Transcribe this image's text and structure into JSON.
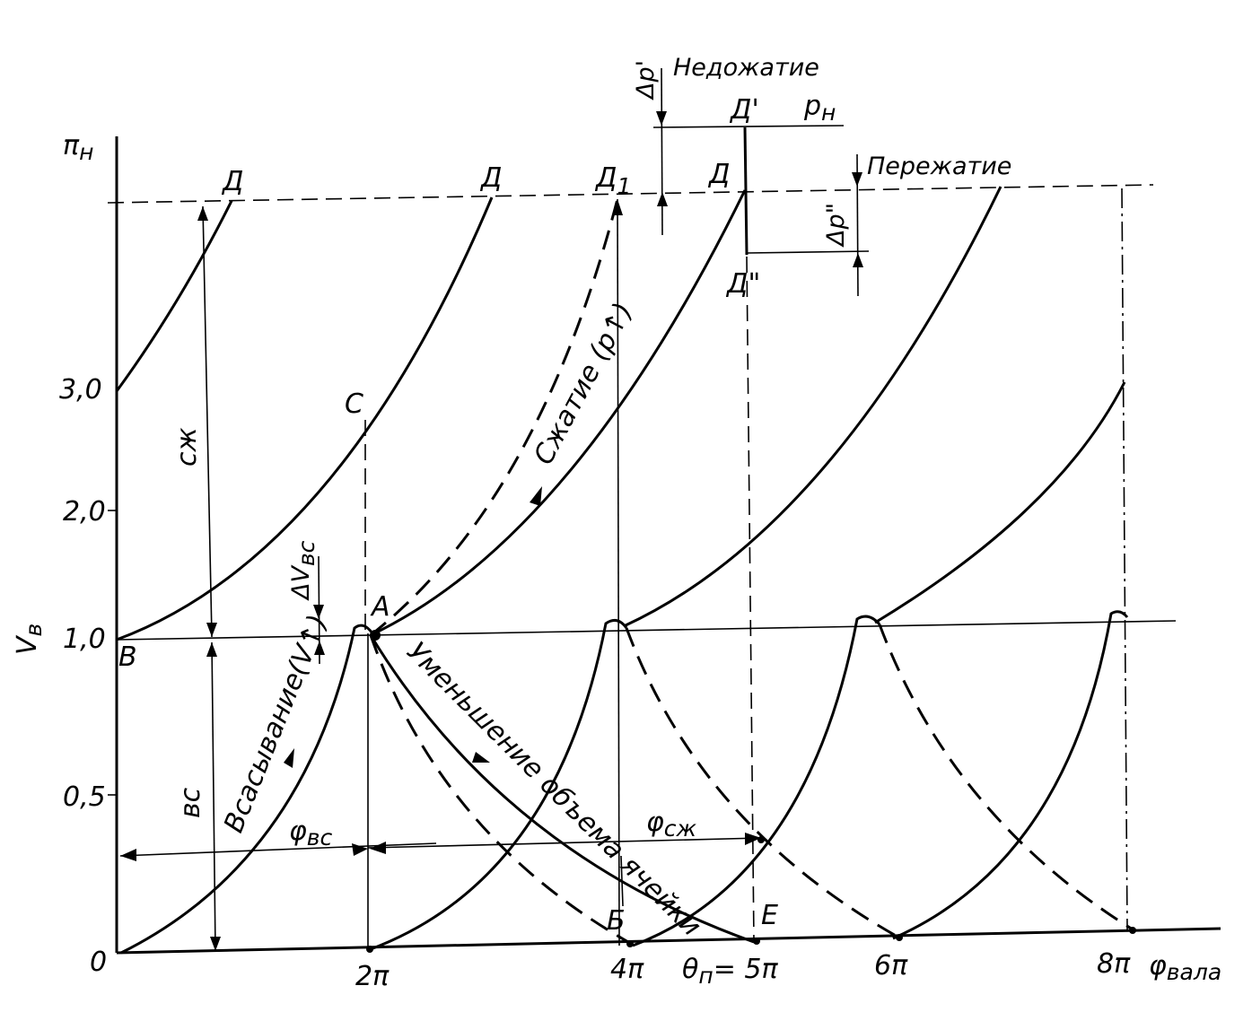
{
  "axes": {
    "y_top_label": "π",
    "y_top_sub": "н",
    "y_mid_label": "V",
    "y_mid_sub": "в",
    "x_label": "φ",
    "x_sub": "вала",
    "y_ticks": [
      "0",
      "0,5",
      "1,0",
      "2,0",
      "3,0"
    ],
    "x_ticks": [
      "2π",
      "4π",
      "θ",
      "п",
      "= 5π",
      "6π",
      "8π"
    ]
  },
  "points": {
    "D": "Д",
    "D1": "Д",
    "D1_sub": "1",
    "D_prime": "Д'",
    "D_double": "Д\"",
    "C": "С",
    "B": "В",
    "A": "А",
    "Bsmall": "Б",
    "E": "Е"
  },
  "annotations": {
    "underpress": "Недожатие",
    "overpress": "Пережатие",
    "p_prime": "p",
    "p_prime_sub": "н",
    "dp1": "Δp'",
    "dp2": "Δp\"",
    "dV": "ΔV",
    "dV_sub": "вс",
    "compression": "Сжатие (p↑)",
    "suction": "Всасывание(V↑)",
    "decrease": "Уменьшение объема ячейки",
    "sz": "сж",
    "vs": "вс",
    "phi_vs": "φ",
    "phi_vs_sub": "вс",
    "phi_sz": "φ",
    "phi_sz_sub": "сж"
  }
}
